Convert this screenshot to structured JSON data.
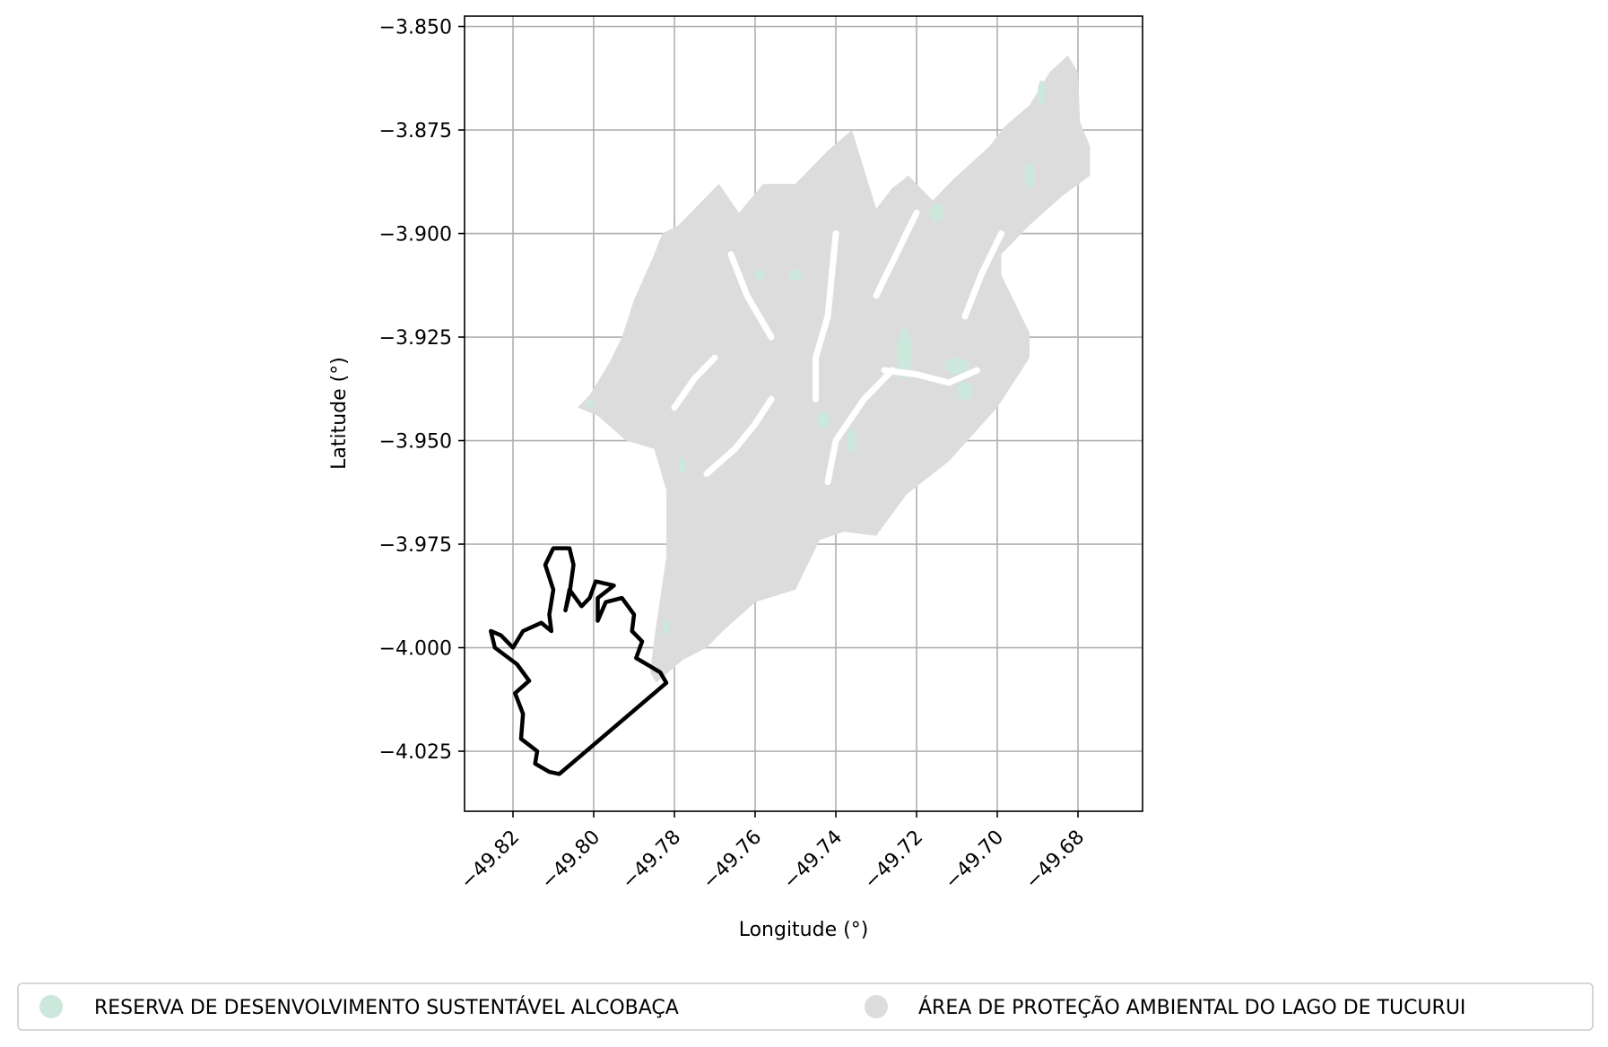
{
  "chart_data": {
    "type": "map",
    "xlabel": "Longitude (°)",
    "ylabel": "Latitude (°)",
    "xlim": [
      -49.832,
      -49.664
    ],
    "ylim": [
      -4.0395,
      -3.8475
    ],
    "x_ticks": [
      -49.82,
      -49.8,
      -49.78,
      -49.76,
      -49.74,
      -49.72,
      -49.7,
      -49.68
    ],
    "x_tick_labels": [
      "−49.82",
      "−49.80",
      "−49.78",
      "−49.76",
      "−49.74",
      "−49.72",
      "−49.70",
      "−49.68"
    ],
    "y_ticks": [
      -3.85,
      -3.875,
      -3.9,
      -3.925,
      -3.95,
      -3.975,
      -4.0,
      -4.025
    ],
    "y_tick_labels": [
      "−3.850",
      "−3.875",
      "−3.900",
      "−3.925",
      "−3.950",
      "−3.975",
      "−4.000",
      "−4.025"
    ],
    "grid": true,
    "legend": {
      "placement": "bottom",
      "entries": [
        {
          "label": "RESERVA DE DESENVOLVIMENTO SUSTENTÁVEL ALCOBAÇA",
          "color": "#cce8dc"
        },
        {
          "label": "ÁREA DE PROTEÇÃO AMBIENTAL DO LAGO DE TUCURUI",
          "color": "#dcdcdc"
        }
      ]
    },
    "regions": [
      {
        "name": "ÁREA DE PROTEÇÃO AMBIENTAL DO LAGO DE TUCURUI",
        "color": "#dcdcdc",
        "polygon": [
          [
            -49.7845,
            -4.0085
          ],
          [
            -49.778,
            -4.003
          ],
          [
            -49.772,
            -4.0
          ],
          [
            -49.768,
            -3.996
          ],
          [
            -49.76,
            -3.989
          ],
          [
            -49.75,
            -3.986
          ],
          [
            -49.744,
            -3.974
          ],
          [
            -49.738,
            -3.972
          ],
          [
            -49.73,
            -3.973
          ],
          [
            -49.7225,
            -3.963
          ],
          [
            -49.712,
            -3.955
          ],
          [
            -49.7,
            -3.942
          ],
          [
            -49.692,
            -3.93
          ],
          [
            -49.692,
            -3.924
          ],
          [
            -49.699,
            -3.91
          ],
          [
            -49.699,
            -3.905
          ],
          [
            -49.692,
            -3.898
          ],
          [
            -49.684,
            -3.891
          ],
          [
            -49.677,
            -3.886
          ],
          [
            -49.677,
            -3.879
          ],
          [
            -49.6795,
            -3.873
          ],
          [
            -49.68,
            -3.861
          ],
          [
            -49.6825,
            -3.857
          ],
          [
            -49.687,
            -3.861
          ],
          [
            -49.692,
            -3.869
          ],
          [
            -49.698,
            -3.874
          ],
          [
            -49.702,
            -3.879
          ],
          [
            -49.711,
            -3.887
          ],
          [
            -49.716,
            -3.892
          ],
          [
            -49.722,
            -3.886
          ],
          [
            -49.726,
            -3.889
          ],
          [
            -49.73,
            -3.894
          ],
          [
            -49.736,
            -3.875
          ],
          [
            -49.742,
            -3.88
          ],
          [
            -49.747,
            -3.885
          ],
          [
            -49.75,
            -3.888
          ],
          [
            -49.758,
            -3.888
          ],
          [
            -49.764,
            -3.895
          ],
          [
            -49.769,
            -3.888
          ],
          [
            -49.775,
            -3.894
          ],
          [
            -49.779,
            -3.898
          ],
          [
            -49.783,
            -3.9
          ],
          [
            -49.785,
            -3.905
          ],
          [
            -49.79,
            -3.916
          ],
          [
            -49.793,
            -3.925
          ],
          [
            -49.796,
            -3.931
          ],
          [
            -49.801,
            -3.939
          ],
          [
            -49.804,
            -3.942
          ],
          [
            -49.799,
            -3.944
          ],
          [
            -49.792,
            -3.95
          ],
          [
            -49.785,
            -3.952
          ],
          [
            -49.782,
            -3.962
          ],
          [
            -49.782,
            -3.978
          ],
          [
            -49.785,
            -3.998
          ],
          [
            -49.786,
            -4.006
          ]
        ]
      }
    ],
    "reserve_patches": [
      {
        "name": "RESERVA DE DESENVOLVIMENTO SUSTENTÁVEL ALCOBAÇA",
        "color": "#cce8dc",
        "center": [
          -49.723,
          -3.929
        ],
        "rx": 0.0018,
        "ry": 0.006
      },
      {
        "name": "RESERVA DE DESENVOLVIMENTO SUSTENTÁVEL ALCOBAÇA",
        "color": "#cce8dc",
        "center": [
          -49.71,
          -3.932
        ],
        "rx": 0.003,
        "ry": 0.002
      },
      {
        "name": "RESERVA DE DESENVOLVIMENTO SUSTENTÁVEL ALCOBAÇA",
        "color": "#cce8dc",
        "center": [
          -49.708,
          -3.938
        ],
        "rx": 0.002,
        "ry": 0.0022
      },
      {
        "name": "RESERVA DE DESENVOLVIMENTO SUSTENTÁVEL ALCOBAÇA",
        "color": "#cce8dc",
        "center": [
          -49.736,
          -3.95
        ],
        "rx": 0.0012,
        "ry": 0.003
      },
      {
        "name": "RESERVA DE DESENVOLVIMENTO SUSTENTÁVEL ALCOBAÇA",
        "color": "#cce8dc",
        "center": [
          -49.743,
          -3.945
        ],
        "rx": 0.0015,
        "ry": 0.0022
      },
      {
        "name": "RESERVA DE DESENVOLVIMENTO SUSTENTÁVEL ALCOBAÇA",
        "color": "#cce8dc",
        "center": [
          -49.715,
          -3.895
        ],
        "rx": 0.0018,
        "ry": 0.0022
      },
      {
        "name": "RESERVA DE DESENVOLVIMENTO SUSTENTÁVEL ALCOBAÇA",
        "color": "#cce8dc",
        "center": [
          -49.692,
          -3.886
        ],
        "rx": 0.0012,
        "ry": 0.003
      },
      {
        "name": "RESERVA DE DESENVOLVIMENTO SUSTENTÁVEL ALCOBAÇA",
        "color": "#cce8dc",
        "center": [
          -49.689,
          -3.866
        ],
        "rx": 0.001,
        "ry": 0.003
      },
      {
        "name": "RESERVA DE DESENVOLVIMENTO SUSTENTÁVEL ALCOBAÇA",
        "color": "#cce8dc",
        "center": [
          -49.759,
          -3.91
        ],
        "rx": 0.0012,
        "ry": 0.0012
      },
      {
        "name": "RESERVA DE DESENVOLVIMENTO SUSTENTÁVEL ALCOBAÇA",
        "color": "#cce8dc",
        "center": [
          -49.75,
          -3.91
        ],
        "rx": 0.0015,
        "ry": 0.0015
      },
      {
        "name": "RESERVA DE DESENVOLVIMENTO SUSTENTÁVEL ALCOBAÇA",
        "color": "#cce8dc",
        "center": [
          -49.778,
          -3.956
        ],
        "rx": 0.001,
        "ry": 0.0018
      },
      {
        "name": "RESERVA DE DESENVOLVIMENTO SUSTENTÁVEL ALCOBAÇA",
        "color": "#cce8dc",
        "center": [
          -49.801,
          -3.941
        ],
        "rx": 0.001,
        "ry": 0.001
      },
      {
        "name": "RESERVA DE DESENVOLVIMENTO SUSTENTÁVEL ALCOBAÇA",
        "color": "#cce8dc",
        "center": [
          -49.782,
          -3.995
        ],
        "rx": 0.0008,
        "ry": 0.002
      }
    ],
    "inlets": [
      {
        "name": "lake-inlet",
        "polyline": [
          [
            -49.772,
            -3.958
          ],
          [
            -49.765,
            -3.952
          ],
          [
            -49.76,
            -3.946
          ],
          [
            -49.756,
            -3.94
          ]
        ]
      },
      {
        "name": "lake-inlet",
        "polyline": [
          [
            -49.742,
            -3.96
          ],
          [
            -49.74,
            -3.95
          ],
          [
            -49.733,
            -3.94
          ],
          [
            -49.726,
            -3.933
          ]
        ]
      },
      {
        "name": "lake-inlet",
        "polyline": [
          [
            -49.745,
            -3.94
          ],
          [
            -49.745,
            -3.93
          ],
          [
            -49.742,
            -3.92
          ],
          [
            -49.74,
            -3.9
          ]
        ]
      },
      {
        "name": "lake-inlet",
        "polyline": [
          [
            -49.728,
            -3.933
          ],
          [
            -49.72,
            -3.934
          ],
          [
            -49.712,
            -3.936
          ],
          [
            -49.705,
            -3.933
          ]
        ]
      },
      {
        "name": "lake-inlet",
        "polyline": [
          [
            -49.756,
            -3.925
          ],
          [
            -49.762,
            -3.915
          ],
          [
            -49.766,
            -3.905
          ]
        ]
      },
      {
        "name": "lake-inlet",
        "polyline": [
          [
            -49.73,
            -3.915
          ],
          [
            -49.725,
            -3.905
          ],
          [
            -49.72,
            -3.895
          ]
        ]
      },
      {
        "name": "lake-inlet",
        "polyline": [
          [
            -49.78,
            -3.942
          ],
          [
            -49.775,
            -3.935
          ],
          [
            -49.77,
            -3.93
          ]
        ]
      },
      {
        "name": "lake-inlet",
        "polyline": [
          [
            -49.708,
            -3.92
          ],
          [
            -49.704,
            -3.91
          ],
          [
            -49.699,
            -3.9
          ]
        ]
      }
    ],
    "outline": {
      "name": "RESERVA DE DESENVOLVIMENTO SUSTENTÁVEL ALCOBAÇA",
      "color": "#000000",
      "polygon": [
        [
          -49.8085,
          -4.0305
        ],
        [
          -49.782,
          -4.0085
        ],
        [
          -49.7835,
          -4.006
        ],
        [
          -49.786,
          -4.0045
        ],
        [
          -49.7895,
          -4.0025
        ],
        [
          -49.788,
          -3.9985
        ],
        [
          -49.7905,
          -3.996
        ],
        [
          -49.79,
          -3.992
        ],
        [
          -49.793,
          -3.988
        ],
        [
          -49.797,
          -3.989
        ],
        [
          -49.799,
          -3.9935
        ],
        [
          -49.799,
          -3.988
        ],
        [
          -49.795,
          -3.985
        ],
        [
          -49.7995,
          -3.984
        ],
        [
          -49.801,
          -3.988
        ],
        [
          -49.803,
          -3.99
        ],
        [
          -49.806,
          -3.986
        ],
        [
          -49.807,
          -3.991
        ],
        [
          -49.806,
          -3.987
        ],
        [
          -49.805,
          -3.98
        ],
        [
          -49.806,
          -3.976
        ],
        [
          -49.81,
          -3.976
        ],
        [
          -49.812,
          -3.98
        ],
        [
          -49.81,
          -3.986
        ],
        [
          -49.811,
          -3.992
        ],
        [
          -49.8105,
          -3.996
        ],
        [
          -49.813,
          -3.994
        ],
        [
          -49.8175,
          -3.996
        ],
        [
          -49.82,
          -4.0
        ],
        [
          -49.823,
          -3.997
        ],
        [
          -49.8255,
          -3.996
        ],
        [
          -49.8245,
          -4.0
        ],
        [
          -49.819,
          -4.004
        ],
        [
          -49.816,
          -4.008
        ],
        [
          -49.8195,
          -4.011
        ],
        [
          -49.8175,
          -4.016
        ],
        [
          -49.818,
          -4.022
        ],
        [
          -49.814,
          -4.025
        ],
        [
          -49.8145,
          -4.028
        ],
        [
          -49.811,
          -4.03
        ]
      ]
    }
  }
}
